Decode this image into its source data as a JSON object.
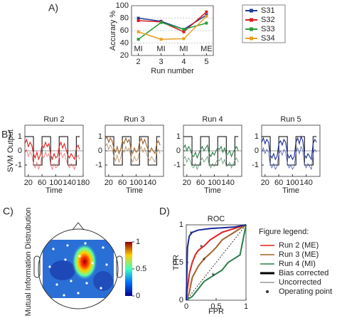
{
  "chart_data": [
    {
      "type": "line",
      "panel_label": "A)",
      "ylabel": "Accurary %",
      "xlabel": "Run number",
      "x": [
        2,
        3,
        4,
        5
      ],
      "xlim": [
        1.7,
        5.3
      ],
      "xticks": [
        2,
        3,
        4,
        5
      ],
      "ylim": [
        20,
        100
      ],
      "yticks": [
        20,
        40,
        60,
        80,
        100
      ],
      "grid": true,
      "annotations": [
        "MI",
        "MI",
        "MI",
        "ME"
      ],
      "legend": "right",
      "series": [
        {
          "name": "S31",
          "color": "#1f3a9c",
          "values": [
            80,
            75,
            62,
            85
          ]
        },
        {
          "name": "S32",
          "color": "#d42020",
          "values": [
            76,
            74,
            58,
            90
          ]
        },
        {
          "name": "S33",
          "color": "#2a9d3a",
          "values": [
            46,
            73,
            62,
            72
          ]
        },
        {
          "name": "S34",
          "color": "#e8a020",
          "values": [
            58,
            46,
            47,
            83
          ]
        }
      ]
    },
    {
      "type": "line",
      "panel_label": "B)",
      "title": "Run 2",
      "ylabel": "SVM Output",
      "xlabel": "Time",
      "x": [
        10,
        15,
        20,
        25,
        30,
        35,
        40,
        45,
        50,
        55,
        60,
        65,
        70,
        75,
        80,
        85,
        90,
        95,
        100,
        105,
        110,
        115,
        120,
        125,
        130,
        135,
        140,
        145,
        150,
        155,
        160,
        165,
        170
      ],
      "xlim": [
        10,
        180
      ],
      "xticks": [
        20,
        60,
        100,
        140,
        180
      ],
      "ylim": [
        -1.8,
        1.8
      ],
      "yticks": [
        -1,
        0,
        1
      ],
      "series": [
        {
          "color": "#000000",
          "step": true,
          "values": [
            1,
            1,
            1,
            1,
            1,
            -1,
            -1,
            -1,
            -1,
            -1,
            1,
            1,
            1,
            1,
            1,
            -1,
            -1,
            -1,
            -1,
            -1,
            1,
            1,
            1,
            1,
            1,
            -1,
            -1,
            -1,
            -1,
            -1,
            1,
            1,
            1
          ]
        },
        {
          "color": "#e02020",
          "values": [
            0.5,
            0.8,
            0.3,
            0.6,
            0.4,
            -0.2,
            -0.5,
            -0.1,
            -0.6,
            -0.3,
            0.4,
            0.2,
            0.6,
            0.3,
            0.5,
            -0.3,
            -0.6,
            -0.2,
            -0.5,
            -0.4,
            0.3,
            0.6,
            0.2,
            0.5,
            0.1,
            -0.3,
            -0.5,
            -0.2,
            -0.4,
            -0.6,
            0.2,
            0.4,
            0.1
          ]
        },
        {
          "color": "#e87070",
          "values": [
            -0.2,
            0.1,
            -0.4,
            -0.1,
            -0.3,
            -0.9,
            -1.2,
            -0.8,
            -1.3,
            -1.0,
            -0.3,
            -0.5,
            -0.1,
            -0.4,
            -0.2,
            -1.0,
            -1.3,
            -0.9,
            -1.2,
            -1.1,
            -0.4,
            -0.1,
            -0.5,
            -0.2,
            -0.6,
            -1.0,
            -1.2,
            -0.9,
            -1.1,
            -1.3,
            -0.5,
            -0.3,
            -0.6
          ]
        }
      ]
    },
    {
      "type": "line",
      "title": "Run 3",
      "xlabel": "Time",
      "x": [
        10,
        15,
        20,
        25,
        30,
        35,
        40,
        45,
        50,
        55,
        60,
        65,
        70,
        75,
        80,
        85,
        90,
        95,
        100,
        105,
        110,
        115,
        120,
        125,
        130,
        135,
        140,
        145,
        150,
        155,
        160,
        165,
        170
      ],
      "xlim": [
        10,
        180
      ],
      "xticks": [
        20,
        60,
        100,
        140
      ],
      "ylim": [
        -1.8,
        1.8
      ],
      "yticks": [
        -1,
        0,
        1
      ],
      "series": [
        {
          "color": "#000000",
          "step": true,
          "values": [
            1,
            1,
            1,
            1,
            1,
            -1,
            -1,
            -1,
            -1,
            -1,
            1,
            1,
            1,
            1,
            1,
            -1,
            -1,
            -1,
            -1,
            -1,
            1,
            1,
            1,
            1,
            1,
            -1,
            -1,
            -1,
            -1,
            -1,
            1,
            1,
            1
          ]
        },
        {
          "color": "#a0622a",
          "values": [
            0.8,
            1.0,
            0.6,
            0.9,
            0.7,
            0.2,
            -0.1,
            0.3,
            -0.2,
            0.1,
            0.7,
            0.5,
            0.9,
            0.6,
            0.8,
            0.1,
            -0.2,
            0.2,
            -0.1,
            0.0,
            0.6,
            0.9,
            0.5,
            0.8,
            0.4,
            0.1,
            -0.1,
            0.2,
            0.0,
            -0.2,
            0.5,
            0.7,
            0.4
          ]
        },
        {
          "color": "#b88a60",
          "values": [
            0.3,
            0.5,
            0.1,
            0.4,
            0.2,
            -0.4,
            -0.7,
            -0.3,
            -0.8,
            -0.5,
            0.1,
            -0.1,
            0.3,
            0.0,
            0.2,
            -0.5,
            -0.8,
            -0.4,
            -0.7,
            -0.6,
            0.0,
            0.3,
            -0.1,
            0.2,
            -0.2,
            -0.5,
            -0.7,
            -0.4,
            -0.6,
            -0.8,
            -0.1,
            0.1,
            -0.2
          ]
        }
      ]
    },
    {
      "type": "line",
      "title": "Run 4",
      "xlabel": "Time",
      "x": [
        10,
        15,
        20,
        25,
        30,
        35,
        40,
        45,
        50,
        55,
        60,
        65,
        70,
        75,
        80,
        85,
        90,
        95,
        100,
        105,
        110,
        115,
        120,
        125,
        130,
        135,
        140,
        145,
        150,
        155,
        160,
        165,
        170
      ],
      "xlim": [
        10,
        180
      ],
      "xticks": [
        20,
        60,
        100,
        140
      ],
      "ylim": [
        -1.8,
        1.8
      ],
      "yticks": [
        -1,
        0,
        1
      ],
      "series": [
        {
          "color": "#000000",
          "step": true,
          "values": [
            1,
            1,
            1,
            1,
            1,
            -1,
            -1,
            -1,
            -1,
            -1,
            1,
            1,
            1,
            1,
            1,
            -1,
            -1,
            -1,
            -1,
            -1,
            1,
            1,
            1,
            1,
            1,
            -1,
            -1,
            -1,
            -1,
            -1,
            1,
            1,
            1
          ]
        },
        {
          "color": "#2e7d4a",
          "values": [
            0.2,
            0.4,
            0.0,
            0.3,
            0.1,
            -0.3,
            -0.4,
            -0.1,
            -0.5,
            -0.2,
            0.1,
            0.3,
            0.0,
            0.2,
            0.4,
            -0.2,
            -0.4,
            -0.1,
            -0.3,
            0.0,
            0.2,
            0.1,
            0.3,
            -0.1,
            0.2,
            -0.3,
            -0.2,
            0.0,
            -0.4,
            -0.1,
            0.1,
            0.3,
            0.0
          ]
        },
        {
          "color": "#5e9c74",
          "values": [
            -0.6,
            -0.4,
            -0.8,
            -0.5,
            -0.7,
            -1.1,
            -1.2,
            -0.9,
            -1.3,
            -1.0,
            -0.7,
            -0.5,
            -0.8,
            -0.6,
            -0.4,
            -1.0,
            -1.2,
            -0.9,
            -1.1,
            -0.8,
            -0.6,
            -0.7,
            -0.5,
            -0.9,
            -0.6,
            -1.1,
            -1.0,
            -0.8,
            -1.2,
            -0.9,
            -0.7,
            -0.5,
            -0.8
          ]
        }
      ]
    },
    {
      "type": "line",
      "title": "Run 5",
      "xlabel": "Time",
      "x": [
        10,
        15,
        20,
        25,
        30,
        35,
        40,
        45,
        50,
        55,
        60,
        65,
        70,
        75,
        80,
        85,
        90,
        95,
        100,
        105,
        110,
        115,
        120,
        125,
        130,
        135,
        140,
        145,
        150,
        155,
        160,
        165,
        170
      ],
      "xlim": [
        10,
        180
      ],
      "xticks": [
        20,
        60,
        100,
        140
      ],
      "ylim": [
        -1.8,
        1.8
      ],
      "yticks": [
        -1,
        0,
        1
      ],
      "series": [
        {
          "color": "#000000",
          "step": true,
          "values": [
            1,
            1,
            1,
            1,
            1,
            -1,
            -1,
            -1,
            -1,
            -1,
            1,
            1,
            1,
            1,
            1,
            -1,
            -1,
            -1,
            -1,
            -1,
            1,
            1,
            1,
            1,
            1,
            -1,
            -1,
            -1,
            -1,
            -1,
            1,
            1,
            1
          ]
        },
        {
          "color": "#1a2a9a",
          "values": [
            0.6,
            0.9,
            0.5,
            0.8,
            0.6,
            -0.3,
            -0.5,
            -0.2,
            -0.6,
            -0.4,
            0.5,
            0.7,
            0.4,
            0.8,
            0.6,
            -0.2,
            -0.5,
            -0.3,
            -0.6,
            -0.4,
            0.6,
            0.9,
            0.5,
            1.0,
            0.7,
            -0.3,
            -0.5,
            -0.2,
            -0.4,
            -0.6,
            0.5,
            0.8,
            0.6
          ]
        },
        {
          "color": "#4f5fb5",
          "values": [
            -0.1,
            0.2,
            -0.2,
            0.1,
            -0.1,
            -1.0,
            -1.2,
            -0.9,
            -1.3,
            -1.1,
            -0.2,
            0.0,
            -0.3,
            0.1,
            -0.1,
            -0.9,
            -1.2,
            -1.0,
            -1.3,
            -1.1,
            -0.1,
            0.2,
            -0.2,
            0.3,
            0.0,
            -1.0,
            -1.2,
            -0.9,
            -1.1,
            -1.3,
            -0.2,
            0.1,
            -0.1
          ]
        }
      ]
    },
    {
      "type": "topomap",
      "panel_label": "C)",
      "ylabel": "Mutual Information Distrubution",
      "clim": [
        0,
        1
      ],
      "cticks": [
        0,
        0.5,
        1
      ]
    },
    {
      "type": "roc",
      "panel_label": "D)",
      "title": "ROC",
      "xlabel": "FPR",
      "ylabel": "TPR",
      "xlim": [
        0,
        1
      ],
      "ylim": [
        0,
        1
      ],
      "xticks": [
        0,
        0.5,
        1
      ],
      "yticks": [
        0,
        0.5,
        1
      ],
      "legend_title": "Figure legend:",
      "legend_styles": [
        "Bias corrected",
        "Uncorrected",
        "Operating point"
      ],
      "series": [
        {
          "name": "Run 2 (ME)",
          "color": "#e02020",
          "x": [
            0,
            0.02,
            0.05,
            0.1,
            0.15,
            0.2,
            0.3,
            0.4,
            0.5,
            0.6,
            0.8,
            1
          ],
          "values": [
            0,
            0.15,
            0.35,
            0.5,
            0.6,
            0.66,
            0.72,
            0.8,
            0.85,
            0.9,
            0.95,
            1
          ]
        },
        {
          "name": "Run 3 (ME)",
          "color": "#a0622a",
          "x": [
            0,
            0.05,
            0.1,
            0.2,
            0.3,
            0.4,
            0.5,
            0.6,
            0.8,
            1
          ],
          "values": [
            0,
            0.1,
            0.3,
            0.45,
            0.55,
            0.62,
            0.7,
            0.8,
            0.9,
            1
          ]
        },
        {
          "name": "Run 4 (MI)",
          "color": "#2e7d4a",
          "x": [
            0,
            0.1,
            0.2,
            0.3,
            0.4,
            0.5,
            0.6,
            0.7,
            0.8,
            0.9,
            1
          ],
          "values": [
            0,
            0.05,
            0.15,
            0.25,
            0.3,
            0.35,
            0.4,
            0.5,
            0.55,
            0.6,
            1
          ]
        },
        {
          "color": "#1a2a9a",
          "x": [
            0,
            0.02,
            0.05,
            0.1,
            0.2,
            0.4,
            0.6,
            0.8,
            1
          ],
          "values": [
            0,
            0.7,
            0.85,
            0.9,
            0.93,
            0.95,
            0.96,
            0.97,
            1
          ]
        }
      ],
      "operating_points": {
        "x": [
          0.08,
          0.25,
          0.3,
          0.45
        ],
        "values": [
          0.9,
          0.72,
          0.55,
          0.35
        ]
      }
    }
  ]
}
